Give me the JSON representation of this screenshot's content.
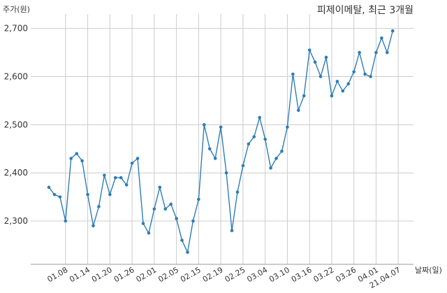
{
  "chart_data": {
    "type": "line",
    "title": "피제이메탈, 최근 3개월",
    "ylabel": "주가(원)",
    "xlabel": "날짜(일)",
    "ylim": [
      2210,
      2730
    ],
    "yticks": [
      2300,
      2400,
      2500,
      2600,
      2700
    ],
    "ytick_labels": [
      "2,300",
      "2,400",
      "2,500",
      "2,600",
      "2,700"
    ],
    "xtick_labels": [
      "01.08",
      "01.14",
      "01.20",
      "01.26",
      "02.01",
      "02.05",
      "02.15",
      "02.19",
      "02.25",
      "03.04",
      "03.10",
      "03.16",
      "03.22",
      "03.26",
      "04.01",
      "21.04.07"
    ],
    "xtick_index": [
      3,
      7,
      11,
      15,
      19,
      23,
      27,
      31,
      35,
      39,
      43,
      47,
      51,
      55,
      59,
      63
    ],
    "grid": true,
    "line_color": "#2e7db5",
    "series": [
      {
        "values": [
          2370,
          2355,
          2350,
          2300,
          2430,
          2440,
          2425,
          2355,
          2290,
          2330,
          2395,
          2355,
          2390,
          2390,
          2375,
          2420,
          2430,
          2295,
          2275,
          2325,
          2370,
          2325,
          2335,
          2305,
          2260,
          2235,
          2300,
          2345,
          2500,
          2450,
          2430,
          2495,
          2400,
          2280,
          2360,
          2415,
          2460,
          2475,
          2515,
          2470,
          2410,
          2430,
          2445,
          2495,
          2605,
          2530,
          2560,
          2655,
          2630,
          2600,
          2640,
          2560,
          2590,
          2570,
          2585,
          2610,
          2650,
          2605,
          2600,
          2650,
          2680,
          2650,
          2695
        ]
      }
    ]
  }
}
